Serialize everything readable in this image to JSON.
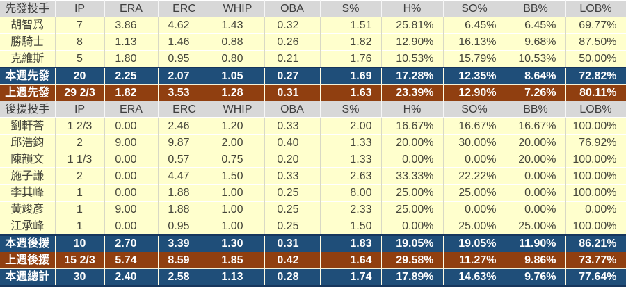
{
  "accent_colors": {
    "header_bg": "#D8D8D8",
    "data_row_bg": "#FFFFCD",
    "this_week_row_bg": "#1F4E79",
    "last_week_row_bg": "#903F10",
    "total_row_bg": "#1F4E79",
    "data_text": "#45453A",
    "summary_text": "#FFFFFF",
    "dark_rule": "#17365D"
  },
  "chart_data": [
    {
      "type": "table",
      "header": "先發投手",
      "columns": [
        "IP",
        "ERA",
        "ERC",
        "WHIP",
        "OBA",
        "S%",
        "H%",
        "SO%",
        "BB%",
        "LOB%"
      ],
      "rows": [
        {
          "label": "胡智爲",
          "style": "data",
          "values": [
            "7",
            "3.86",
            "4.62",
            "1.43",
            "0.32",
            "1.51",
            "25.81%",
            "6.45%",
            "6.45%",
            "69.77%"
          ]
        },
        {
          "label": "勝騎士",
          "style": "data",
          "values": [
            "8",
            "1.13",
            "1.46",
            "0.88",
            "0.26",
            "1.82",
            "12.90%",
            "16.13%",
            "9.68%",
            "87.50%"
          ]
        },
        {
          "label": "克維斯",
          "style": "data",
          "values": [
            "5",
            "1.80",
            "0.95",
            "0.80",
            "0.21",
            "1.76",
            "10.53%",
            "15.79%",
            "10.53%",
            "50.00%"
          ]
        },
        {
          "label": "本週先發",
          "style": "week",
          "values": [
            "20",
            "2.25",
            "2.07",
            "1.05",
            "0.27",
            "1.69",
            "17.28%",
            "12.35%",
            "8.64%",
            "72.82%"
          ]
        },
        {
          "label": "上週先發",
          "style": "prev",
          "values": [
            "29 2/3",
            "1.82",
            "3.53",
            "1.28",
            "0.31",
            "1.63",
            "23.39%",
            "12.90%",
            "7.26%",
            "80.11%"
          ]
        }
      ]
    },
    {
      "type": "table",
      "header": "後援投手",
      "columns": [
        "IP",
        "ERA",
        "ERC",
        "WHIP",
        "OBA",
        "S%",
        "H%",
        "SO%",
        "BB%",
        "LOB%"
      ],
      "rows": [
        {
          "label": "劉軒荅",
          "style": "data",
          "values": [
            "1 2/3",
            "0.00",
            "2.46",
            "1.20",
            "0.33",
            "2.00",
            "16.67%",
            "16.67%",
            "16.67%",
            "100.00%"
          ]
        },
        {
          "label": "邱浩鈞",
          "style": "data",
          "values": [
            "2",
            "9.00",
            "9.87",
            "2.00",
            "0.40",
            "1.33",
            "20.00%",
            "30.00%",
            "20.00%",
            "76.92%"
          ]
        },
        {
          "label": "陳韻文",
          "style": "data",
          "values": [
            "1 1/3",
            "0.00",
            "0.57",
            "0.75",
            "0.20",
            "1.33",
            "0.00%",
            "0.00%",
            "20.00%",
            "100.00%"
          ]
        },
        {
          "label": "施子謙",
          "style": "data",
          "values": [
            "2",
            "0.00",
            "4.47",
            "1.50",
            "0.33",
            "2.63",
            "33.33%",
            "22.22%",
            "0.00%",
            "100.00%"
          ]
        },
        {
          "label": "李其峰",
          "style": "data",
          "values": [
            "1",
            "0.00",
            "1.88",
            "1.00",
            "0.25",
            "8.00",
            "25.00%",
            "25.00%",
            "0.00%",
            "100.00%"
          ]
        },
        {
          "label": "黃竣彥",
          "style": "data",
          "values": [
            "1",
            "9.00",
            "1.88",
            "1.00",
            "0.25",
            "2.33",
            "25.00%",
            "0.00%",
            "0.00%",
            "0.00%"
          ]
        },
        {
          "label": "江承峰",
          "style": "data",
          "values": [
            "1",
            "0.00",
            "0.95",
            "1.00",
            "0.25",
            "1.50",
            "0.00%",
            "25.00%",
            "25.00%",
            "100.00%"
          ]
        },
        {
          "label": "本週後援",
          "style": "week",
          "values": [
            "10",
            "2.70",
            "3.39",
            "1.30",
            "0.31",
            "1.83",
            "19.05%",
            "19.05%",
            "11.90%",
            "86.21%"
          ]
        },
        {
          "label": "上週後援",
          "style": "prev",
          "values": [
            "15 2/3",
            "5.74",
            "8.59",
            "1.85",
            "0.42",
            "1.64",
            "29.58%",
            "11.27%",
            "9.86%",
            "73.77%"
          ]
        },
        {
          "label": "本週總計",
          "style": "total",
          "values": [
            "30",
            "2.40",
            "2.58",
            "1.13",
            "0.28",
            "1.74",
            "17.89%",
            "14.63%",
            "9.76%",
            "77.64%"
          ]
        }
      ]
    }
  ]
}
